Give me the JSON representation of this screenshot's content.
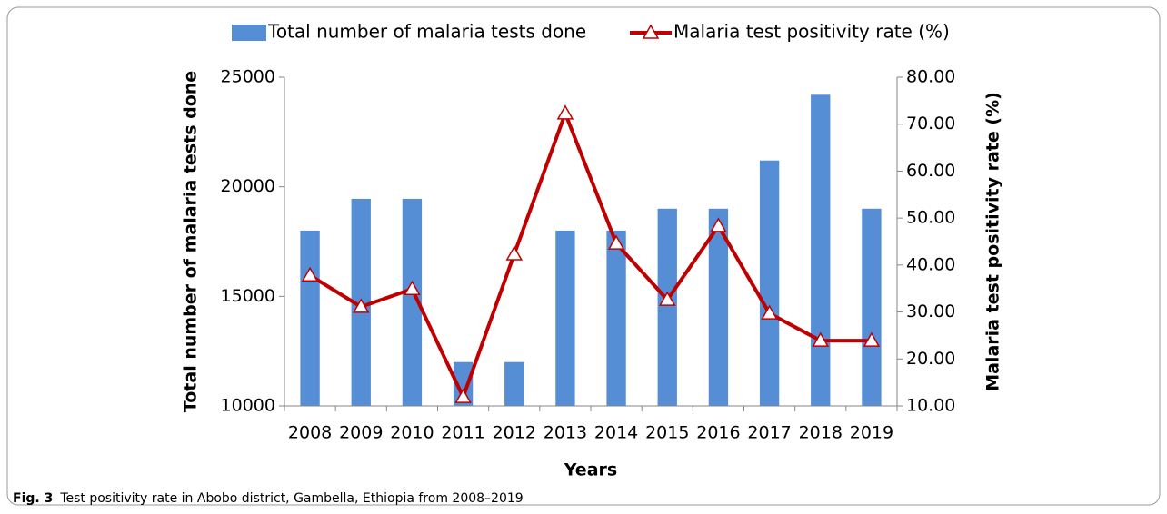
{
  "chart_data": {
    "type": "bar-line",
    "categories": [
      "2008",
      "2009",
      "2010",
      "2011",
      "2012",
      "2013",
      "2014",
      "2015",
      "2016",
      "2017",
      "2018",
      "2019"
    ],
    "series": [
      {
        "name": "Total number of malaria tests done",
        "color": "#558ed5",
        "type": "bar",
        "values": [
          18000,
          19450,
          19450,
          12000,
          12000,
          18000,
          18000,
          19000,
          19000,
          21200,
          24200,
          19000
        ]
      },
      {
        "name": "Malaria test positivity rate (%)",
        "color": "#c00000",
        "type": "line",
        "axis": "y2",
        "values": [
          37.8,
          31.1,
          34.9,
          11.9,
          42.3,
          72.3,
          44.6,
          32.6,
          48.3,
          29.7,
          23.9,
          23.9
        ]
      }
    ],
    "xlabel": "Years",
    "ylabel": "Total number of malaria tests done",
    "y2label": "Malaria test positivity rate (%)",
    "ylim": [
      10000,
      25000
    ],
    "yticks": [
      10000,
      15000,
      20000,
      25000
    ],
    "y2lim": [
      10,
      80
    ],
    "y2ticks": [
      {
        "value": 10,
        "label": "10.00"
      },
      {
        "value": 20,
        "label": "20.00"
      },
      {
        "value": 30,
        "label": "30.00"
      },
      {
        "value": 40,
        "label": "40.00"
      },
      {
        "value": 50,
        "label": "50.00"
      },
      {
        "value": 60,
        "label": "60.00"
      },
      {
        "value": 70,
        "label": "70.00"
      },
      {
        "value": 80,
        "label": "80.00"
      }
    ],
    "grid": false,
    "legend": "top"
  },
  "caption": {
    "label": "Fig. 3",
    "text": "Test positivity rate in Abobo district, Gambella, Ethiopia from 2008–2019"
  }
}
